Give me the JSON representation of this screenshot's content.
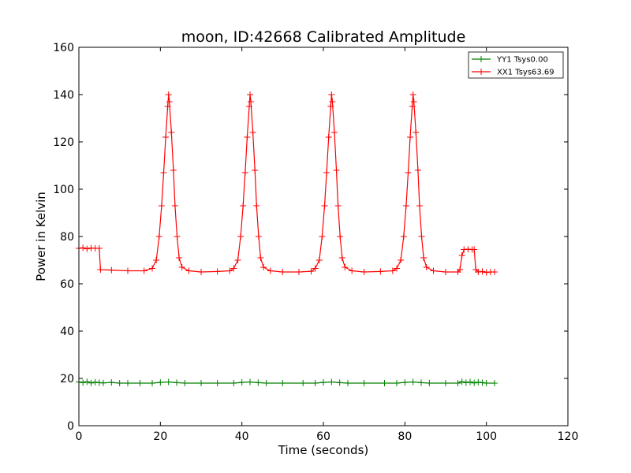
{
  "chart_data": {
    "type": "line",
    "title": "moon, ID:42668 Calibrated Amplitude",
    "xlabel": "Time (seconds)",
    "ylabel": "Power in Kelvin",
    "xlim": [
      0,
      120
    ],
    "ylim": [
      0,
      160
    ],
    "xticks": [
      "0",
      "20",
      "40",
      "60",
      "80",
      "100",
      "120"
    ],
    "yticks": [
      "0",
      "20",
      "40",
      "60",
      "80",
      "100",
      "120",
      "140",
      "160"
    ],
    "grid": false,
    "legend_position": "top-right",
    "marker": "+",
    "series": [
      {
        "name": "YY1 Tsys0.00",
        "color": "#008000",
        "points": [
          [
            0,
            18.5
          ],
          [
            1,
            18.2
          ],
          [
            2,
            18.6
          ],
          [
            3,
            18.1
          ],
          [
            4,
            18.4
          ],
          [
            5,
            18.2
          ],
          [
            6,
            18.1
          ],
          [
            8,
            18.3
          ],
          [
            10,
            18.0
          ],
          [
            12,
            18.0
          ],
          [
            15,
            18.0
          ],
          [
            18,
            18.0
          ],
          [
            20,
            18.3
          ],
          [
            22,
            18.5
          ],
          [
            24,
            18.2
          ],
          [
            26,
            18.0
          ],
          [
            30,
            18.0
          ],
          [
            34,
            18.0
          ],
          [
            38,
            18.0
          ],
          [
            40,
            18.3
          ],
          [
            42,
            18.5
          ],
          [
            44,
            18.2
          ],
          [
            46,
            18.0
          ],
          [
            50,
            18.0
          ],
          [
            55,
            18.0
          ],
          [
            58,
            18.0
          ],
          [
            60,
            18.3
          ],
          [
            62,
            18.5
          ],
          [
            64,
            18.2
          ],
          [
            66,
            18.0
          ],
          [
            70,
            18.0
          ],
          [
            75,
            18.0
          ],
          [
            78,
            18.0
          ],
          [
            80,
            18.3
          ],
          [
            82,
            18.5
          ],
          [
            84,
            18.2
          ],
          [
            86,
            18.0
          ],
          [
            90,
            18.0
          ],
          [
            93,
            18.0
          ],
          [
            94,
            18.6
          ],
          [
            95,
            18.2
          ],
          [
            96,
            18.5
          ],
          [
            97,
            18.1
          ],
          [
            98,
            18.4
          ],
          [
            99,
            18.2
          ],
          [
            100,
            18.0
          ],
          [
            102,
            18.0
          ]
        ]
      },
      {
        "name": "XX1 Tsys63.69",
        "color": "#ff0000",
        "points": [
          [
            0,
            75.0
          ],
          [
            1,
            75.2
          ],
          [
            2,
            74.8
          ],
          [
            3,
            75.1
          ],
          [
            4,
            75.0
          ],
          [
            5,
            75.0
          ],
          [
            5.3,
            66.0
          ],
          [
            8,
            65.8
          ],
          [
            12,
            65.5
          ],
          [
            16,
            65.5
          ],
          [
            18,
            66.5
          ],
          [
            19,
            70
          ],
          [
            19.7,
            80
          ],
          [
            20.3,
            93
          ],
          [
            20.8,
            107
          ],
          [
            21.3,
            122
          ],
          [
            21.8,
            135
          ],
          [
            22,
            140
          ],
          [
            22.2,
            137
          ],
          [
            22.7,
            124
          ],
          [
            23.2,
            108
          ],
          [
            23.6,
            93
          ],
          [
            24.1,
            80
          ],
          [
            24.6,
            71
          ],
          [
            25.3,
            67
          ],
          [
            27,
            65.5
          ],
          [
            30,
            65.0
          ],
          [
            34,
            65.2
          ],
          [
            37,
            65.5
          ],
          [
            38,
            66.5
          ],
          [
            39,
            70
          ],
          [
            39.7,
            80
          ],
          [
            40.3,
            93
          ],
          [
            40.8,
            107
          ],
          [
            41.3,
            122
          ],
          [
            41.8,
            135
          ],
          [
            42,
            140
          ],
          [
            42.2,
            137
          ],
          [
            42.7,
            124
          ],
          [
            43.2,
            108
          ],
          [
            43.6,
            93
          ],
          [
            44.1,
            80
          ],
          [
            44.6,
            71
          ],
          [
            45.3,
            67
          ],
          [
            47,
            65.5
          ],
          [
            50,
            65.0
          ],
          [
            54,
            65.0
          ],
          [
            57,
            65.3
          ],
          [
            58,
            66.5
          ],
          [
            59,
            70
          ],
          [
            59.7,
            80
          ],
          [
            60.3,
            93
          ],
          [
            60.8,
            107
          ],
          [
            61.3,
            122
          ],
          [
            61.8,
            135
          ],
          [
            62,
            140
          ],
          [
            62.2,
            137
          ],
          [
            62.7,
            124
          ],
          [
            63.2,
            108
          ],
          [
            63.6,
            93
          ],
          [
            64.1,
            80
          ],
          [
            64.6,
            71
          ],
          [
            65.3,
            67
          ],
          [
            67,
            65.5
          ],
          [
            70,
            65.0
          ],
          [
            74,
            65.2
          ],
          [
            77,
            65.5
          ],
          [
            78,
            66.5
          ],
          [
            79,
            70
          ],
          [
            79.7,
            80
          ],
          [
            80.3,
            93
          ],
          [
            80.8,
            107
          ],
          [
            81.3,
            122
          ],
          [
            81.8,
            135
          ],
          [
            82,
            140
          ],
          [
            82.2,
            137
          ],
          [
            82.7,
            124
          ],
          [
            83.2,
            108
          ],
          [
            83.6,
            93
          ],
          [
            84.1,
            80
          ],
          [
            84.6,
            71
          ],
          [
            85.3,
            67
          ],
          [
            87,
            65.5
          ],
          [
            90,
            65.0
          ],
          [
            93,
            65.0
          ],
          [
            93.5,
            66.0
          ],
          [
            94,
            72
          ],
          [
            94.5,
            74.5
          ],
          [
            95.5,
            74.6
          ],
          [
            96.5,
            74.5
          ],
          [
            97,
            74.5
          ],
          [
            97.4,
            66
          ],
          [
            98,
            65.0
          ],
          [
            99,
            65.2
          ],
          [
            100,
            64.8
          ],
          [
            101,
            65.0
          ],
          [
            102,
            65.0
          ]
        ]
      }
    ]
  }
}
